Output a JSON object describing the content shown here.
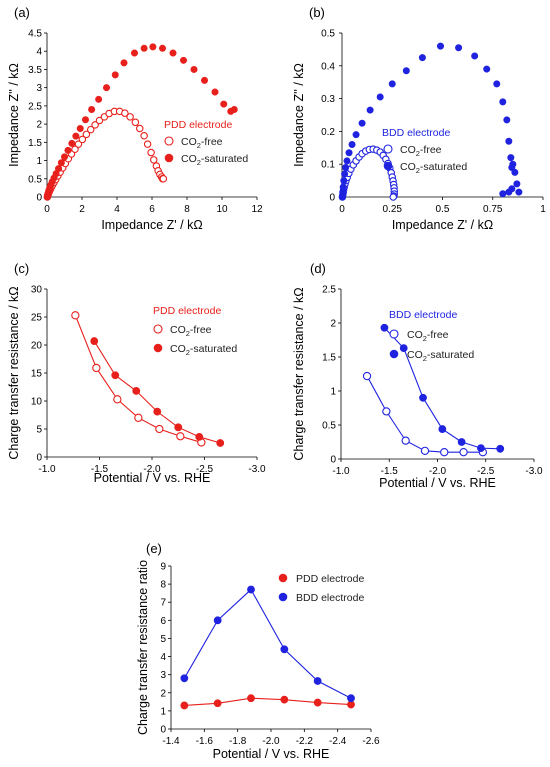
{
  "chart_data": [
    {
      "panel": "(a)",
      "type": "scatter",
      "xlabel": "Impedance Z' / kΩ",
      "ylabel": "Impedance Z'' / kΩ",
      "xlim": [
        0,
        12
      ],
      "ylim": [
        0,
        4.5
      ],
      "xticks": [
        "0",
        "2",
        "4",
        "6",
        "8",
        "10",
        "12"
      ],
      "yticks": [
        "0",
        "0.5",
        "1",
        "1.5",
        "2",
        "2.5",
        "3",
        "3.5",
        "4",
        "4.5"
      ],
      "legend_title": "PDD electrode",
      "legend_position": "right",
      "color": "#e8201c",
      "series": [
        {
          "name": "CO₂-free",
          "marker": "open-circle",
          "x": [
            0.02,
            0.04,
            0.06,
            0.09,
            0.12,
            0.16,
            0.2,
            0.25,
            0.32,
            0.4,
            0.5,
            0.62,
            0.75,
            0.9,
            1.05,
            1.22,
            1.4,
            1.6,
            1.8,
            2.02,
            2.25,
            2.5,
            2.75,
            3.0,
            3.28,
            3.55,
            3.85,
            4.15,
            4.45,
            4.75,
            5.05,
            5.3,
            5.55,
            5.75,
            5.95,
            6.1,
            6.25,
            6.35,
            6.45,
            6.55,
            6.6,
            6.65
          ],
          "y": [
            0.0,
            0.04,
            0.07,
            0.1,
            0.14,
            0.18,
            0.22,
            0.27,
            0.33,
            0.4,
            0.48,
            0.58,
            0.68,
            0.8,
            0.92,
            1.05,
            1.18,
            1.31,
            1.45,
            1.58,
            1.72,
            1.85,
            1.98,
            2.1,
            2.2,
            2.29,
            2.35,
            2.35,
            2.3,
            2.2,
            2.05,
            1.88,
            1.68,
            1.45,
            1.22,
            1.02,
            0.85,
            0.72,
            0.62,
            0.55,
            0.5,
            0.5
          ]
        },
        {
          "name": "CO₂-saturated",
          "marker": "filled-circle",
          "x": [
            0.02,
            0.04,
            0.06,
            0.09,
            0.12,
            0.16,
            0.22,
            0.3,
            0.4,
            0.52,
            0.66,
            0.82,
            1.0,
            1.2,
            1.42,
            1.65,
            1.9,
            2.2,
            2.55,
            2.95,
            3.4,
            3.9,
            4.4,
            5.0,
            5.55,
            6.05,
            6.6,
            7.2,
            7.8,
            8.4,
            9.0,
            9.6,
            10.1,
            10.5,
            10.7
          ],
          "y": [
            0.0,
            0.05,
            0.1,
            0.15,
            0.2,
            0.26,
            0.33,
            0.42,
            0.52,
            0.64,
            0.78,
            0.94,
            1.1,
            1.28,
            1.47,
            1.67,
            1.88,
            2.12,
            2.4,
            2.68,
            3.0,
            3.35,
            3.68,
            3.95,
            4.08,
            4.12,
            4.08,
            3.95,
            3.75,
            3.5,
            3.2,
            2.88,
            2.55,
            2.35,
            2.4
          ]
        }
      ]
    },
    {
      "panel": "(b)",
      "type": "scatter",
      "xlabel": "Impedance Z' / kΩ",
      "ylabel": "Impedance Z'' / kΩ",
      "xlim": [
        0,
        1
      ],
      "ylim": [
        0,
        0.5
      ],
      "xticks": [
        "0",
        "0.25",
        "0.5",
        "0.75",
        "1"
      ],
      "yticks": [
        "0",
        "0.1",
        "0.2",
        "0.3",
        "0.4",
        "0.5"
      ],
      "legend_title": "BDD electrode",
      "legend_position": "right",
      "color": "#1f23e0",
      "series": [
        {
          "name": "CO₂-free",
          "marker": "open-circle",
          "x": [
            0.002,
            0.004,
            0.006,
            0.008,
            0.011,
            0.015,
            0.02,
            0.026,
            0.034,
            0.044,
            0.056,
            0.07,
            0.085,
            0.1,
            0.118,
            0.136,
            0.155,
            0.173,
            0.19,
            0.205,
            0.218,
            0.229,
            0.238,
            0.245,
            0.25,
            0.254,
            0.257,
            0.259,
            0.26,
            0.26,
            0.258,
            0.255
          ],
          "y": [
            0.0,
            0.007,
            0.014,
            0.022,
            0.03,
            0.04,
            0.05,
            0.06,
            0.072,
            0.085,
            0.098,
            0.11,
            0.122,
            0.132,
            0.14,
            0.145,
            0.146,
            0.143,
            0.137,
            0.127,
            0.115,
            0.102,
            0.088,
            0.074,
            0.061,
            0.049,
            0.038,
            0.028,
            0.018,
            0.009,
            0.003,
            0.0
          ]
        },
        {
          "name": "CO₂-saturated",
          "marker": "filled-circle",
          "x": [
            0.002,
            0.004,
            0.006,
            0.009,
            0.013,
            0.018,
            0.025,
            0.035,
            0.05,
            0.07,
            0.1,
            0.14,
            0.19,
            0.25,
            0.32,
            0.4,
            0.49,
            0.58,
            0.66,
            0.72,
            0.77,
            0.8,
            0.82,
            0.83,
            0.84,
            0.845,
            0.85,
            0.86,
            0.87,
            0.88,
            0.845,
            0.83,
            0.8
          ],
          "y": [
            0.0,
            0.015,
            0.03,
            0.05,
            0.07,
            0.09,
            0.11,
            0.135,
            0.16,
            0.19,
            0.225,
            0.265,
            0.305,
            0.345,
            0.385,
            0.425,
            0.46,
            0.455,
            0.43,
            0.39,
            0.345,
            0.29,
            0.235,
            0.17,
            0.12,
            0.09,
            0.1,
            0.075,
            0.04,
            0.015,
            0.025,
            0.015,
            0.01
          ]
        }
      ]
    },
    {
      "panel": "(c)",
      "type": "line",
      "xlabel": "Potential / V vs. RHE",
      "ylabel": "Charge transfer resistance / kΩ",
      "xlim": [
        -1.0,
        -3.0
      ],
      "ylim": [
        0,
        30
      ],
      "xticks": [
        "-1.0",
        "-1.5",
        "-2.0",
        "-2.5",
        "-3.0"
      ],
      "yticks": [
        "0",
        "5",
        "10",
        "15",
        "20",
        "25",
        "30"
      ],
      "legend_title": "PDD electrode",
      "legend_position": "top-right",
      "color": "#e8201c",
      "series": [
        {
          "name": "CO₂-free",
          "marker": "open-circle",
          "x": [
            -1.27,
            -1.47,
            -1.67,
            -1.87,
            -2.07,
            -2.27,
            -2.47
          ],
          "y": [
            25.3,
            15.9,
            10.3,
            7.0,
            5.0,
            3.7,
            2.6
          ]
        },
        {
          "name": "CO₂-saturated",
          "marker": "filled-circle",
          "x": [
            -1.45,
            -1.65,
            -1.85,
            -2.05,
            -2.25,
            -2.45,
            -2.65
          ],
          "y": [
            20.7,
            14.6,
            11.8,
            8.1,
            5.3,
            3.6,
            2.5
          ]
        }
      ]
    },
    {
      "panel": "(d)",
      "type": "line",
      "xlabel": "Potential / V vs. RHE",
      "ylabel": "Charge transfer resistance / kΩ",
      "xlim": [
        -1.0,
        -3.0
      ],
      "ylim": [
        0,
        2.5
      ],
      "xticks": [
        "-1.0",
        "-1.5",
        "-2.0",
        "-2.5",
        "-3.0"
      ],
      "yticks": [
        "0",
        "0.5",
        "1",
        "1.5",
        "2",
        "2.5"
      ],
      "legend_title": "BDD electrode",
      "legend_position": "top-right",
      "color": "#1f23e0",
      "series": [
        {
          "name": "CO₂-free",
          "marker": "open-circle",
          "x": [
            -1.27,
            -1.47,
            -1.67,
            -1.87,
            -2.07,
            -2.27,
            -2.47
          ],
          "y": [
            1.22,
            0.7,
            0.27,
            0.12,
            0.1,
            0.1,
            0.1
          ]
        },
        {
          "name": "CO₂-saturated",
          "marker": "filled-circle",
          "x": [
            -1.45,
            -1.65,
            -1.85,
            -2.05,
            -2.25,
            -2.45,
            -2.65
          ],
          "y": [
            1.93,
            1.63,
            0.9,
            0.44,
            0.25,
            0.16,
            0.15
          ]
        }
      ]
    },
    {
      "panel": "(e)",
      "type": "line",
      "xlabel": "Potential / V vs. RHE",
      "ylabel": "Charge transfer resistance ratio",
      "xlim": [
        -1.4,
        -2.6
      ],
      "ylim": [
        0,
        9
      ],
      "xticks": [
        "-1.4",
        "-1.6",
        "-1.8",
        "-2.0",
        "-2.2",
        "-2.4",
        "-2.6"
      ],
      "yticks": [
        "0",
        "1",
        "2",
        "3",
        "4",
        "5",
        "6",
        "7",
        "8",
        "9"
      ],
      "legend_position": "top-right",
      "series": [
        {
          "name": "PDD electrode",
          "color": "#e8201c",
          "marker": "filled-circle",
          "x": [
            -1.48,
            -1.68,
            -1.88,
            -2.08,
            -2.28,
            -2.48
          ],
          "y": [
            1.3,
            1.42,
            1.7,
            1.62,
            1.46,
            1.35
          ]
        },
        {
          "name": "BDD electrode",
          "color": "#1f23e0",
          "marker": "filled-circle",
          "x": [
            -1.48,
            -1.68,
            -1.88,
            -2.08,
            -2.28,
            -2.48
          ],
          "y": [
            2.8,
            6.0,
            7.7,
            4.4,
            2.65,
            1.7
          ]
        }
      ]
    }
  ]
}
